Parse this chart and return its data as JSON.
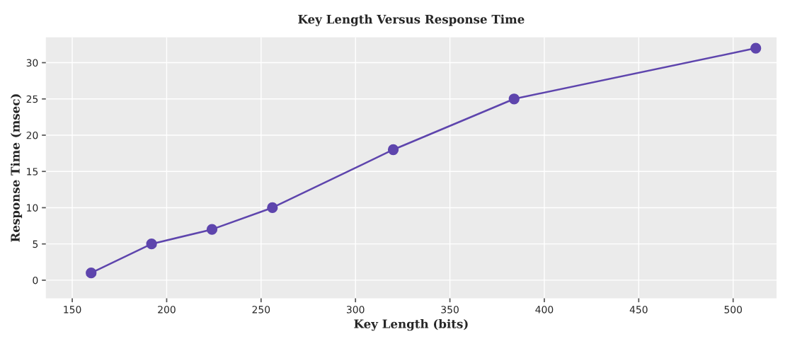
{
  "chart_data": {
    "type": "line",
    "title": "Key Length Versus Response Time",
    "xlabel": "Key Length (bits)",
    "ylabel": "Response Time (msec)",
    "x": [
      160,
      192,
      224,
      256,
      320,
      384,
      512
    ],
    "series": [
      {
        "color": "#5e45ad",
        "values": [
          1,
          5,
          7,
          10,
          18,
          25,
          32
        ]
      }
    ],
    "xlim": [
      136,
      523
    ],
    "ylim": [
      -2.5,
      33.5
    ],
    "xticks": [
      150,
      200,
      250,
      300,
      350,
      400,
      450,
      500
    ],
    "yticks": [
      0,
      5,
      10,
      15,
      20,
      25,
      30
    ],
    "grid": true,
    "marker": "circle",
    "line_style": "solid"
  }
}
